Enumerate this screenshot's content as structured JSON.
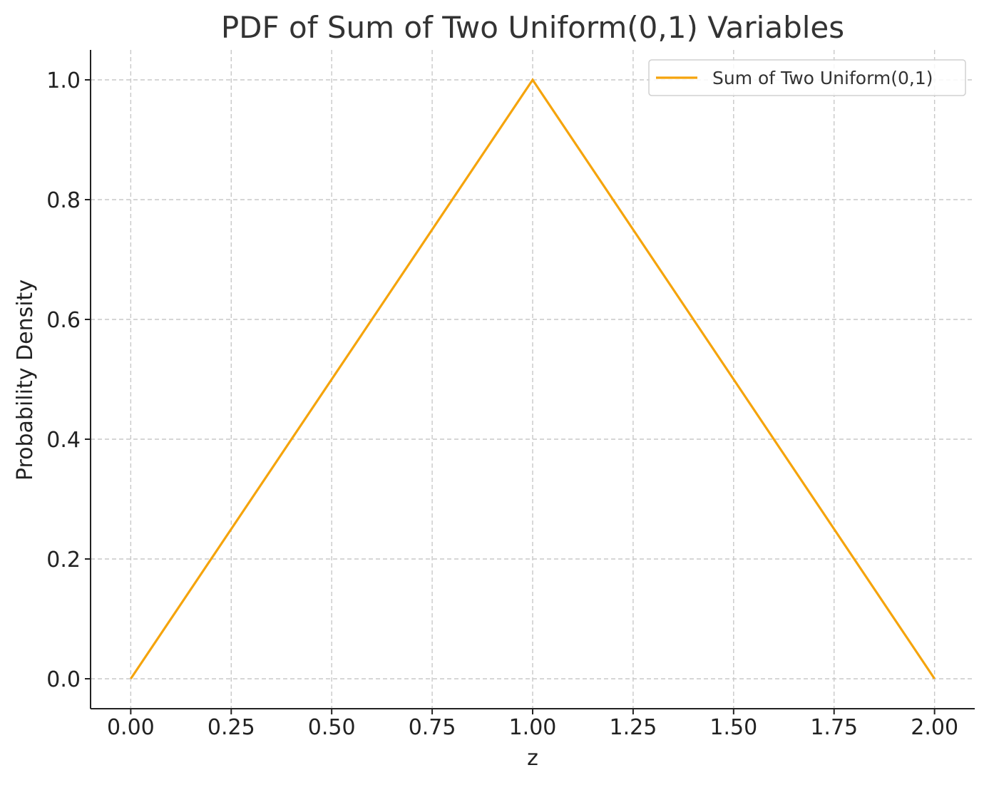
{
  "chart_data": {
    "type": "line",
    "title": "PDF of Sum of Two Uniform(0,1) Variables",
    "xlabel": "z",
    "ylabel": "Probability Density",
    "xlim": [
      -0.1,
      2.1
    ],
    "ylim": [
      -0.05,
      1.05
    ],
    "xticks": [
      0.0,
      0.25,
      0.5,
      0.75,
      1.0,
      1.25,
      1.5,
      1.75,
      2.0
    ],
    "xtick_labels": [
      "0.00",
      "0.25",
      "0.50",
      "0.75",
      "1.00",
      "1.25",
      "1.50",
      "1.75",
      "2.00"
    ],
    "yticks": [
      0.0,
      0.2,
      0.4,
      0.6,
      0.8,
      1.0
    ],
    "ytick_labels": [
      "0.0",
      "0.2",
      "0.4",
      "0.6",
      "0.8",
      "1.0"
    ],
    "grid": true,
    "legend_position": "top-right",
    "series": [
      {
        "name": "Sum of Two Uniform(0,1)",
        "color": "#f5a40c",
        "x": [
          0.0,
          1.0,
          2.0
        ],
        "y": [
          0.0,
          1.0,
          0.0
        ]
      }
    ]
  }
}
